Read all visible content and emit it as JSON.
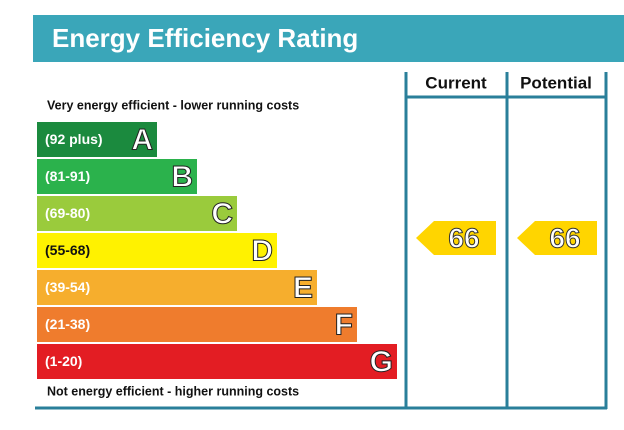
{
  "title": "Energy Efficiency Rating",
  "top_note": "Very energy efficient - lower running costs",
  "bottom_note": "Not energy efficient - higher running costs",
  "columns": [
    "Current",
    "Potential"
  ],
  "bands": [
    {
      "label": "(92 plus)",
      "letter": "A"
    },
    {
      "label": "(81-91)",
      "letter": "B"
    },
    {
      "label": "(69-80)",
      "letter": "C"
    },
    {
      "label": "(55-68)",
      "letter": "D"
    },
    {
      "label": "(39-54)",
      "letter": "E"
    },
    {
      "label": "(21-38)",
      "letter": "F"
    },
    {
      "label": "(1-20)",
      "letter": "G"
    }
  ],
  "ratings": [
    66,
    66
  ]
}
